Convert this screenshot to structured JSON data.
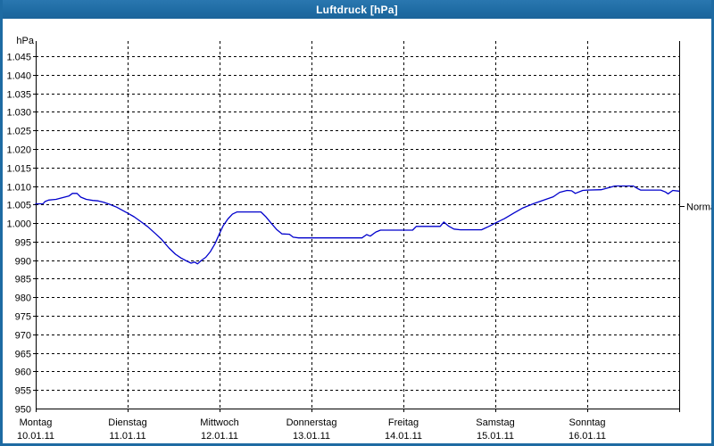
{
  "window": {
    "title": "Luftdruck [hPa]"
  },
  "colors": {
    "titlebar": "#1e6ba3",
    "window_border": "#1e6ba3",
    "plot_background": "#ffffff",
    "grid": "#000000",
    "axis": "#000000",
    "series_line": "#0000cc",
    "label_text": "#000000",
    "title_text": "#ffffff"
  },
  "chart_data": {
    "type": "line",
    "title": "Luftdruck [hPa]",
    "unit_label": "hPa",
    "grid": {
      "horizontal": "dashed",
      "vertical": "dashed",
      "legend": "none"
    },
    "y_axis": {
      "min": 950,
      "max": 1045,
      "tick_step": 5,
      "tick_labels": [
        "1.045",
        "1.040",
        "1.035",
        "1.030",
        "1.025",
        "1.020",
        "1.015",
        "1.010",
        "1.005",
        "1.000",
        "995",
        "990",
        "985",
        "980",
        "975",
        "970",
        "965",
        "960",
        "955",
        "950"
      ]
    },
    "x_axis": {
      "days": [
        {
          "name": "Montag",
          "date": "10.01.11"
        },
        {
          "name": "Dienstag",
          "date": "11.01.11"
        },
        {
          "name": "Mittwoch",
          "date": "12.01.11"
        },
        {
          "name": "Donnerstag",
          "date": "13.01.11"
        },
        {
          "name": "Freitag",
          "date": "14.01.11"
        },
        {
          "name": "Samstag",
          "date": "15.01.11"
        },
        {
          "name": "Sonntag",
          "date": "16.01.11"
        }
      ]
    },
    "normal_marker": {
      "label": "Normal",
      "value": 1004.7
    },
    "series": [
      {
        "name": "Luftdruck",
        "color": "#0000cc",
        "points": [
          [
            0.0,
            1005.2
          ],
          [
            0.08,
            1005.2
          ],
          [
            0.1,
            1005.8
          ],
          [
            0.14,
            1006.2
          ],
          [
            0.22,
            1006.4
          ],
          [
            0.3,
            1006.9
          ],
          [
            0.36,
            1007.3
          ],
          [
            0.4,
            1008.0
          ],
          [
            0.45,
            1008.0
          ],
          [
            0.49,
            1007.0
          ],
          [
            0.55,
            1006.4
          ],
          [
            0.62,
            1006.1
          ],
          [
            0.68,
            1006.0
          ],
          [
            0.74,
            1005.6
          ],
          [
            0.81,
            1005.0
          ],
          [
            0.88,
            1004.3
          ],
          [
            0.94,
            1003.5
          ],
          [
            1.0,
            1002.7
          ],
          [
            1.07,
            1001.7
          ],
          [
            1.15,
            1000.3
          ],
          [
            1.22,
            999.0
          ],
          [
            1.3,
            997.2
          ],
          [
            1.37,
            995.6
          ],
          [
            1.45,
            993.3
          ],
          [
            1.52,
            991.6
          ],
          [
            1.58,
            990.6
          ],
          [
            1.64,
            989.8
          ],
          [
            1.69,
            989.2
          ],
          [
            1.73,
            989.5
          ],
          [
            1.76,
            989.0
          ],
          [
            1.8,
            989.9
          ],
          [
            1.85,
            990.8
          ],
          [
            1.9,
            992.3
          ],
          [
            1.95,
            994.4
          ],
          [
            2.0,
            997.2
          ],
          [
            2.04,
            999.3
          ],
          [
            2.09,
            1001.1
          ],
          [
            2.14,
            1002.4
          ],
          [
            2.19,
            1003.0
          ],
          [
            2.45,
            1003.0
          ],
          [
            2.5,
            1001.8
          ],
          [
            2.56,
            1000.0
          ],
          [
            2.62,
            998.3
          ],
          [
            2.68,
            997.1
          ],
          [
            2.76,
            997.0
          ],
          [
            2.8,
            996.2
          ],
          [
            2.86,
            996.0
          ],
          [
            3.55,
            996.0
          ],
          [
            3.6,
            996.9
          ],
          [
            3.64,
            996.5
          ],
          [
            3.7,
            997.6
          ],
          [
            3.75,
            998.1
          ],
          [
            4.1,
            998.1
          ],
          [
            4.14,
            999.1
          ],
          [
            4.4,
            999.1
          ],
          [
            4.44,
            1000.3
          ],
          [
            4.49,
            999.2
          ],
          [
            4.55,
            998.4
          ],
          [
            4.62,
            998.2
          ],
          [
            4.85,
            998.2
          ],
          [
            4.93,
            999.1
          ],
          [
            5.0,
            1000.0
          ],
          [
            5.1,
            1001.2
          ],
          [
            5.2,
            1002.7
          ],
          [
            5.3,
            1004.1
          ],
          [
            5.42,
            1005.3
          ],
          [
            5.55,
            1006.4
          ],
          [
            5.63,
            1007.1
          ],
          [
            5.7,
            1008.3
          ],
          [
            5.78,
            1008.8
          ],
          [
            5.83,
            1008.7
          ],
          [
            5.87,
            1008.0
          ],
          [
            5.95,
            1008.8
          ],
          [
            6.0,
            1008.9
          ],
          [
            6.15,
            1009.0
          ],
          [
            6.24,
            1009.6
          ],
          [
            6.3,
            1010.0
          ],
          [
            6.5,
            1010.0
          ],
          [
            6.54,
            1009.4
          ],
          [
            6.58,
            1008.9
          ],
          [
            6.8,
            1008.9
          ],
          [
            6.85,
            1008.4
          ],
          [
            6.88,
            1007.9
          ],
          [
            6.93,
            1008.8
          ],
          [
            7.0,
            1008.6
          ]
        ]
      }
    ]
  }
}
